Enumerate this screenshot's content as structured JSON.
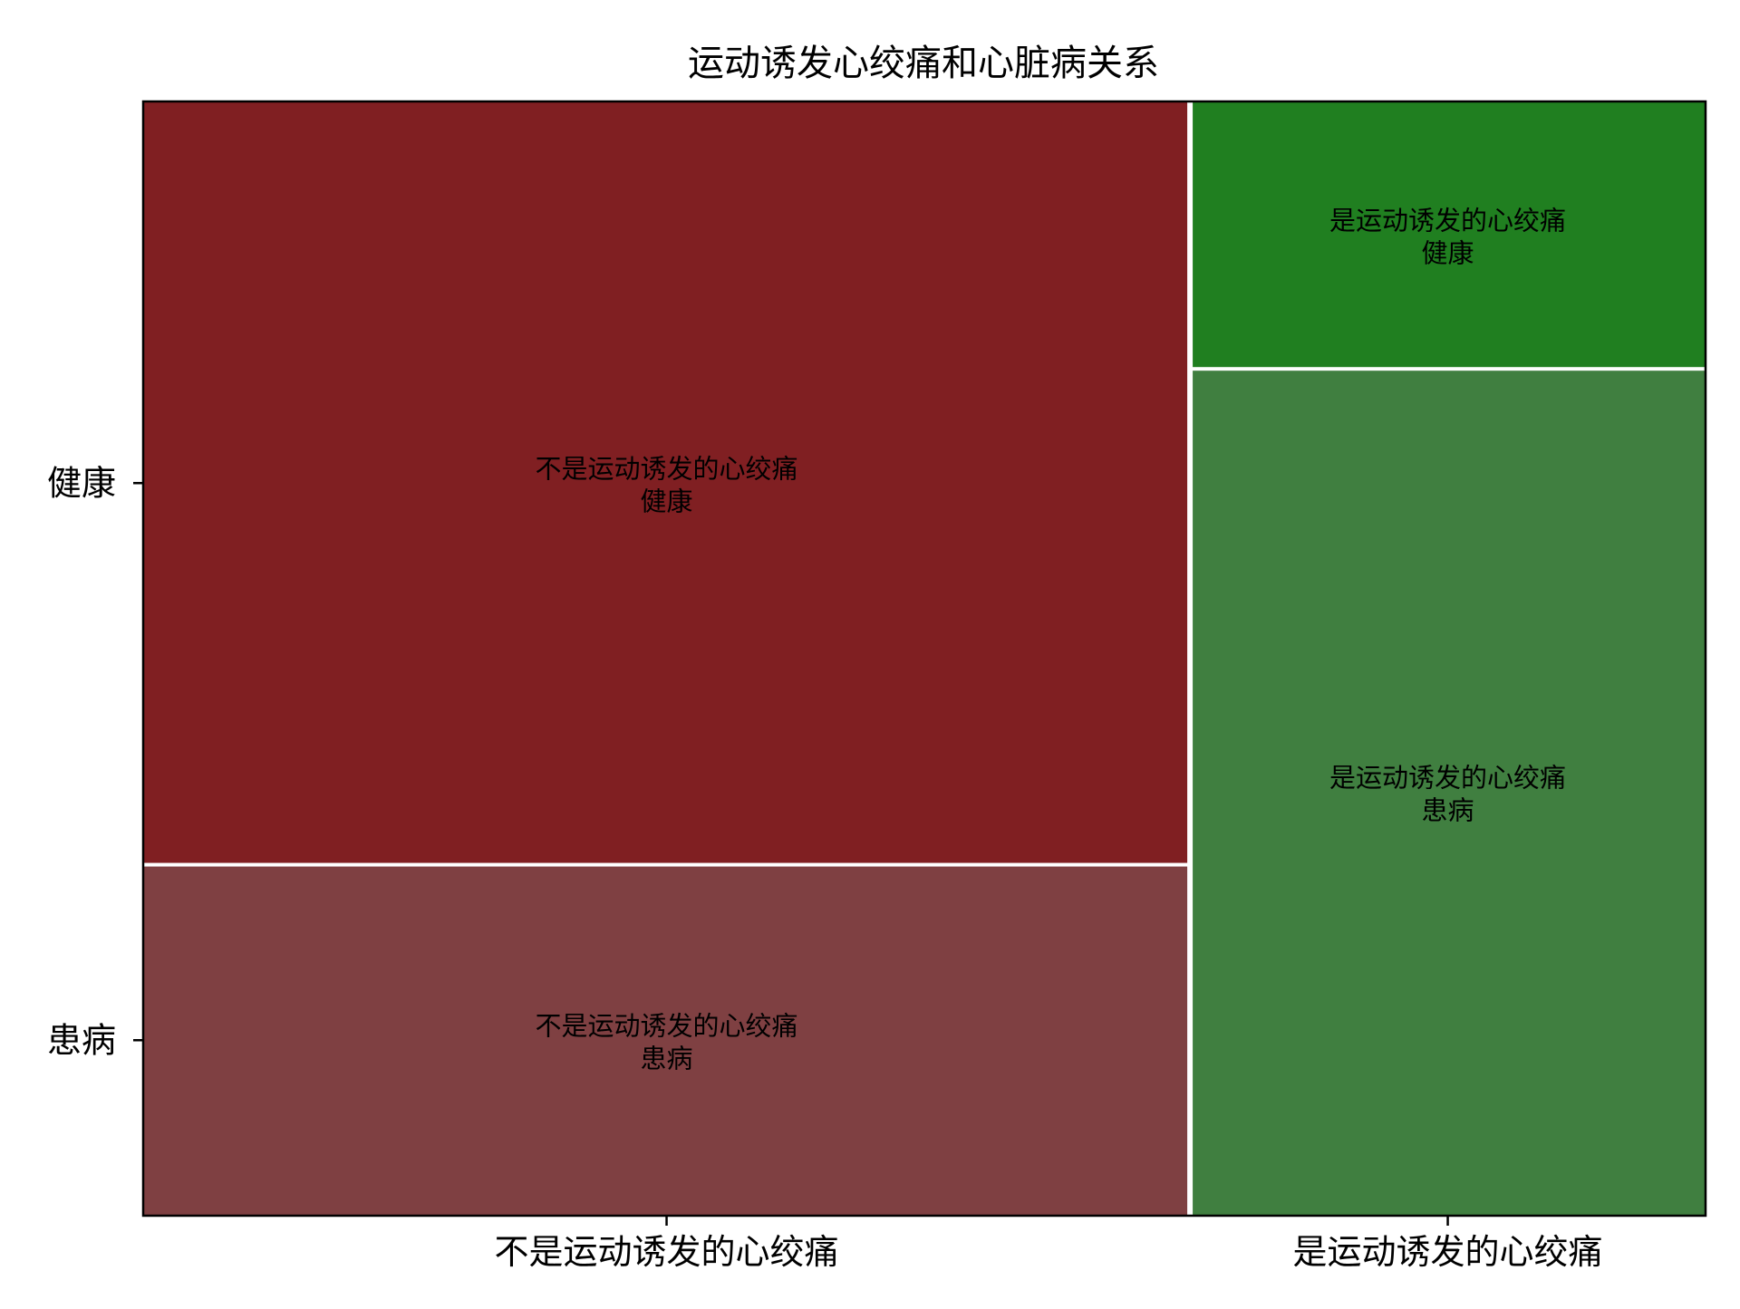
{
  "chart_data": {
    "type": "mosaic",
    "title": "运动诱发心绞痛和心脏病关系",
    "xlabel": "",
    "ylabel": "",
    "x_categories": [
      "不是运动诱发的心绞痛",
      "是运动诱发的心绞痛"
    ],
    "y_categories": [
      "健康",
      "患病"
    ],
    "x_proportions": [
      0.67,
      0.33
    ],
    "y_proportions_within_x": [
      {
        "健康": 0.685,
        "患病": 0.315
      },
      {
        "健康": 0.24,
        "患病": 0.76
      }
    ],
    "tiles": [
      {
        "x": "不是运动诱发的心绞痛",
        "y": "健康",
        "label_line1": "不是运动诱发的心绞痛",
        "label_line2": "健康",
        "color": "#801F22"
      },
      {
        "x": "不是运动诱发的心绞痛",
        "y": "患病",
        "label_line1": "不是运动诱发的心绞痛",
        "label_line2": "患病",
        "color": "#7F4042"
      },
      {
        "x": "是运动诱发的心绞痛",
        "y": "健康",
        "label_line1": "是运动诱发的心绞痛",
        "label_line2": "健康",
        "color": "#207F20"
      },
      {
        "x": "是运动诱发的心绞痛",
        "y": "患病",
        "label_line1": "是运动诱发的心绞痛",
        "label_line2": "患病",
        "color": "#407F40"
      }
    ],
    "grid": false,
    "legend": "none"
  }
}
